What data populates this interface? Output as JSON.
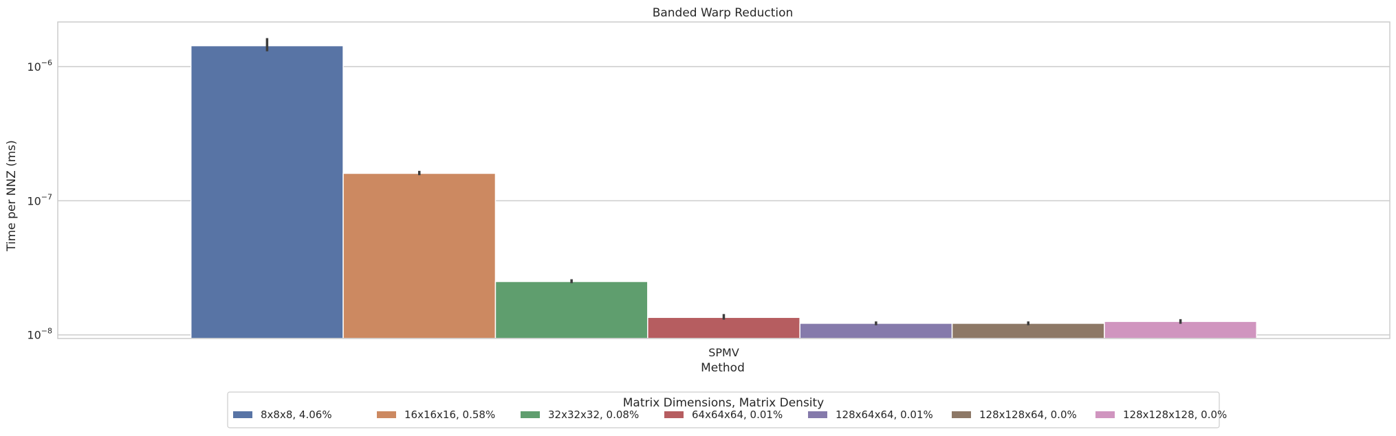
{
  "chart_data": {
    "type": "bar",
    "title": "Banded Warp Reduction",
    "xlabel": "Method",
    "ylabel": "Time per NNZ (ms)",
    "yscale": "log",
    "ylim": [
      9.4e-09,
      2.15e-06
    ],
    "yticks": [
      {
        "value": 1e-08,
        "base": "10",
        "exp": "−8"
      },
      {
        "value": 1e-07,
        "base": "10",
        "exp": "−7"
      },
      {
        "value": 1e-06,
        "base": "10",
        "exp": "−6"
      }
    ],
    "categories": [
      "SPMV"
    ],
    "grid": true,
    "legend": {
      "title": "Matrix Dimensions, Matrix Density",
      "placement": "bottom-center"
    },
    "series": [
      {
        "name": "8x8x8, 4.06%",
        "color": "#5874a5",
        "values": [
          1.43e-06
        ],
        "err": [
          [
            1.3e-06,
            1.63e-06
          ]
        ]
      },
      {
        "name": "16x16x16, 0.58%",
        "color": "#cc8961",
        "values": [
          1.6e-07
        ],
        "err": [
          [
            1.55e-07,
            1.67e-07
          ]
        ]
      },
      {
        "name": "32x32x32, 0.08%",
        "color": "#5f9e6e",
        "values": [
          2.5e-08
        ],
        "err": [
          [
            2.43e-08,
            2.6e-08
          ]
        ]
      },
      {
        "name": "64x64x64, 0.01%",
        "color": "#b65d60",
        "values": [
          1.35e-08
        ],
        "err": [
          [
            1.3e-08,
            1.43e-08
          ]
        ]
      },
      {
        "name": "128x64x64, 0.01%",
        "color": "#857aab",
        "values": [
          1.22e-08
        ],
        "err": [
          [
            1.18e-08,
            1.26e-08
          ]
        ]
      },
      {
        "name": "128x128x64, 0.0%",
        "color": "#8d7866",
        "values": [
          1.22e-08
        ],
        "err": [
          [
            1.18e-08,
            1.26e-08
          ]
        ]
      },
      {
        "name": "128x128x128, 0.0%",
        "color": "#d095bf",
        "values": [
          1.26e-08
        ],
        "err": [
          [
            1.21e-08,
            1.31e-08
          ]
        ]
      }
    ]
  }
}
